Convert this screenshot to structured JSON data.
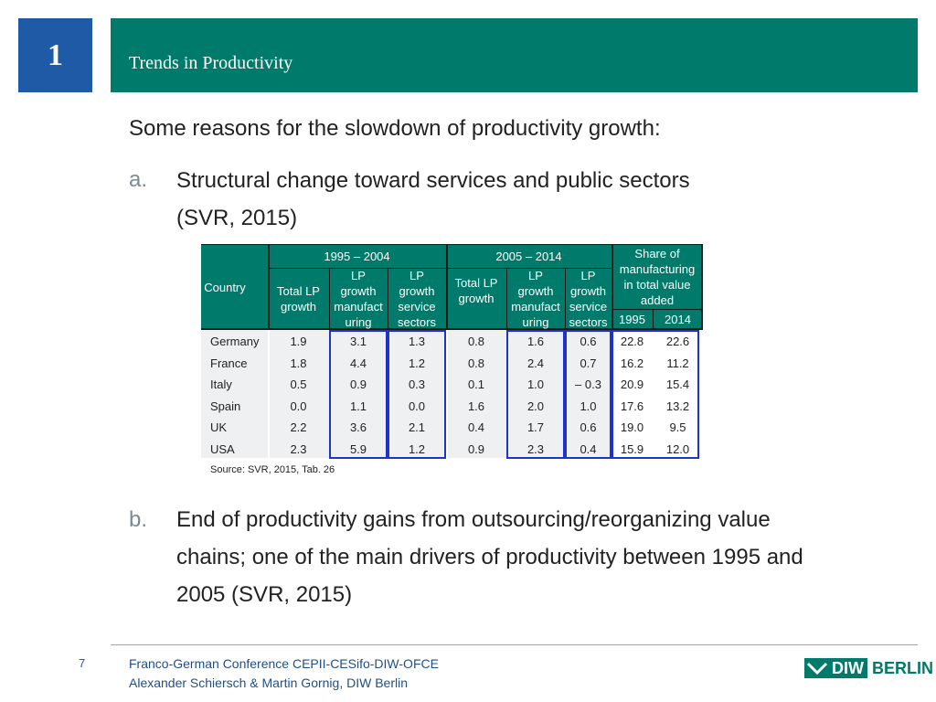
{
  "header": {
    "slide_number": "1",
    "title": "Trends in Productivity"
  },
  "intro": "Some reasons for the slowdown of productivity growth:",
  "bullets": [
    {
      "letter": "a.",
      "line1": "Structural change toward services and public sectors",
      "line2": "(SVR, 2015)"
    },
    {
      "letter": "b.",
      "line1": "End of productivity gains from outsourcing/reorganizing value",
      "line2": "chains; one of the main drivers of productivity between 1995 and",
      "line3": "2005  (SVR, 2015)"
    }
  ],
  "table": {
    "country_header": "Country",
    "period1": "1995 – 2004",
    "period2": "2005 – 2014",
    "share_header": [
      "Share of",
      "manufacturing",
      "in total value",
      "added"
    ],
    "sub_headers": {
      "total": [
        "Total LP",
        "growth"
      ],
      "manu": [
        "LP",
        "growth",
        "manufact",
        "uring"
      ],
      "serv": [
        "LP",
        "growth",
        "service",
        "sectors"
      ]
    },
    "year1": "1995",
    "year2": "2014",
    "rows": [
      {
        "country": "Germany",
        "v": [
          "1.9",
          "3.1",
          "1.3",
          "0.8",
          "1.6",
          "0.6",
          "22.8",
          "22.6"
        ]
      },
      {
        "country": "France",
        "v": [
          "1.8",
          "4.4",
          "1.2",
          "0.8",
          "2.4",
          "0.7",
          "16.2",
          "11.2"
        ]
      },
      {
        "country": "Italy",
        "v": [
          "0.5",
          "0.9",
          "0.3",
          "0.1",
          "1.0",
          "–  0.3",
          "20.9",
          "15.4"
        ]
      },
      {
        "country": "Spain",
        "v": [
          "0.0",
          "1.1",
          "0.0",
          "1.6",
          "2.0",
          "1.0",
          "17.6",
          "13.2"
        ]
      },
      {
        "country": "UK",
        "v": [
          "2.2",
          "3.6",
          "2.1",
          "0.4",
          "1.7",
          "0.6",
          "19.0",
          "9.5"
        ]
      },
      {
        "country": "USA",
        "v": [
          "2.3",
          "5.9",
          "1.2",
          "0.9",
          "2.3",
          "0.4",
          "15.9",
          "12.0"
        ]
      }
    ],
    "source": "Source:  SVR, 2015, Tab. 26"
  },
  "footer": {
    "page": "7",
    "line1": "Franco-German Conference CEPII-CESifo-DIW-OFCE",
    "line2": "Alexander Schiersch & Martin Gornig, DIW Berlin",
    "logo_diw": "DIW",
    "logo_berlin": "BERLIN"
  },
  "colors": {
    "teal": "#007a6a",
    "blue_box": "#1f5aa6",
    "highlight": "#1f33cc"
  }
}
